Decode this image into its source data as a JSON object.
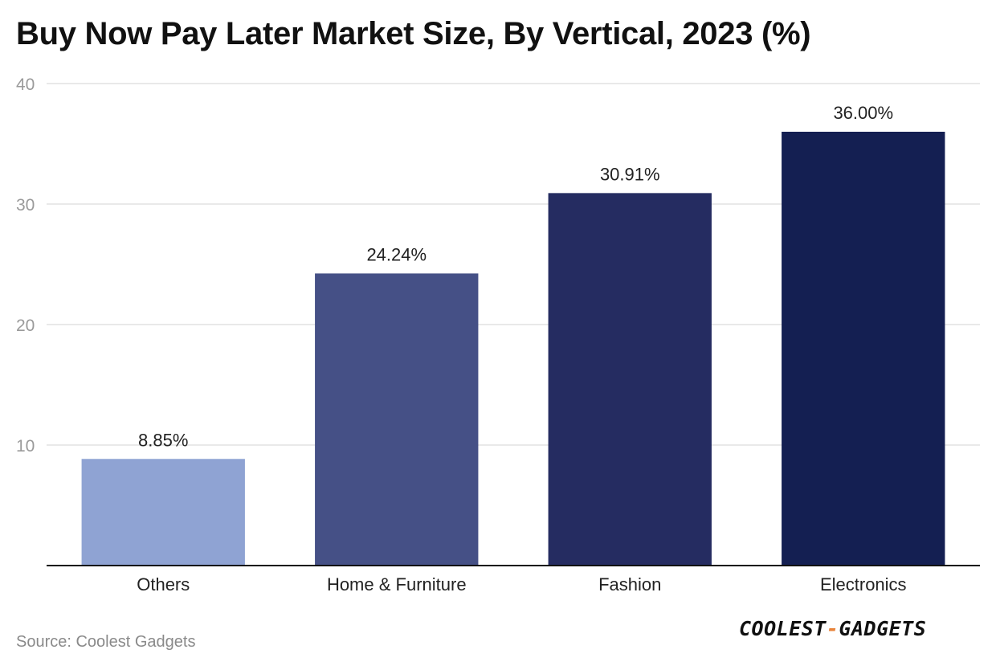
{
  "chart_data": {
    "type": "bar",
    "title": "Buy Now Pay Later Market Size, By Vertical, 2023 (%)",
    "xlabel": "",
    "ylabel": "",
    "categories": [
      "Others",
      "Home & Furniture",
      "Fashion",
      "Electronics"
    ],
    "values": [
      8.85,
      24.24,
      30.91,
      36.0
    ],
    "value_labels": [
      "8.85%",
      "24.24%",
      "30.91%",
      "36.00%"
    ],
    "ylim": [
      0,
      40
    ],
    "yticks": [
      10,
      20,
      30,
      40
    ],
    "ytick_labels": [
      "10",
      "20",
      "30",
      "40"
    ],
    "bar_colors": [
      "#8fa3d3",
      "#455086",
      "#252c61",
      "#141f52"
    ],
    "grid": true,
    "legend": "none"
  },
  "footer": {
    "source": "Source: Coolest Gadgets",
    "brand_left": "COOLEST",
    "brand_dash": "-",
    "brand_right": "GADGETS"
  }
}
